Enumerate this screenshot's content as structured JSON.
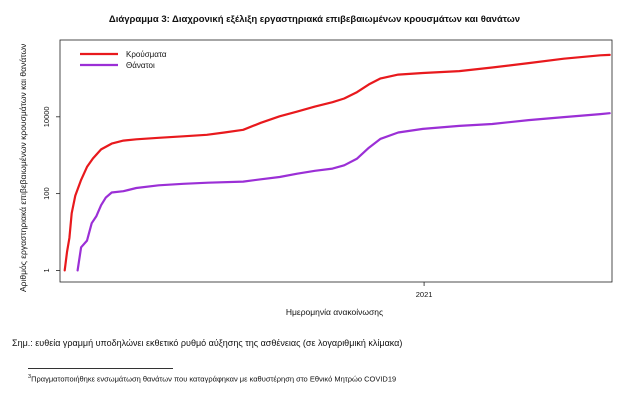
{
  "chart_data": {
    "type": "line",
    "title": "Διάγραμμα 3: Διαχρονική εξέλιξη εργαστηριακά επιβεβαιωμένων κρουσμάτων και θανάτων",
    "xlabel": "Ημερομηνία ανακοίνωσης",
    "ylabel": "Αριθμός εργαστηριακά επιβεβαιωμένων κρουσμάτων και θανάτων",
    "x_scale": "date",
    "xlim": [
      "2020-02-26",
      "2021-06-10"
    ],
    "x_ticks": [
      {
        "date": "2021-01-01",
        "label": "2021"
      }
    ],
    "y_scale": "log10",
    "ylim": [
      0.5,
      1000000
    ],
    "y_ticks": [
      {
        "value": 1,
        "label": "1"
      },
      {
        "value": 100,
        "label": "100"
      },
      {
        "value": 10000,
        "label": "10000"
      }
    ],
    "grid": false,
    "legend_position": "top-left",
    "series": [
      {
        "name": "Κρούσματα",
        "color": "#e8191d",
        "points": [
          [
            "2020-03-01",
            1
          ],
          [
            "2020-03-03",
            3
          ],
          [
            "2020-03-05",
            7
          ],
          [
            "2020-03-07",
            31
          ],
          [
            "2020-03-10",
            89
          ],
          [
            "2020-03-15",
            228
          ],
          [
            "2020-03-20",
            495
          ],
          [
            "2020-03-25",
            821
          ],
          [
            "2020-04-01",
            1415
          ],
          [
            "2020-04-10",
            2011
          ],
          [
            "2020-04-20",
            2401
          ],
          [
            "2020-05-01",
            2591
          ],
          [
            "2020-05-20",
            2850
          ],
          [
            "2020-06-10",
            3100
          ],
          [
            "2020-06-30",
            3400
          ],
          [
            "2020-07-15",
            3900
          ],
          [
            "2020-07-31",
            4600
          ],
          [
            "2020-08-15",
            7000
          ],
          [
            "2020-08-31",
            10300
          ],
          [
            "2020-09-15",
            13700
          ],
          [
            "2020-09-30",
            18500
          ],
          [
            "2020-10-15",
            24000
          ],
          [
            "2020-10-25",
            30000
          ],
          [
            "2020-11-05",
            44000
          ],
          [
            "2020-11-15",
            70000
          ],
          [
            "2020-11-25",
            100000
          ],
          [
            "2020-12-10",
            126000
          ],
          [
            "2020-12-31",
            138000
          ],
          [
            "2021-01-31",
            155000
          ],
          [
            "2021-02-28",
            192000
          ],
          [
            "2021-03-31",
            250000
          ],
          [
            "2021-04-30",
            325000
          ],
          [
            "2021-05-31",
            400000
          ],
          [
            "2021-06-08",
            410000
          ]
        ]
      },
      {
        "name": "Θάνατοι",
        "color": "#9b2fd6",
        "points": [
          [
            "2020-03-12",
            1
          ],
          [
            "2020-03-15",
            4
          ],
          [
            "2020-03-20",
            6
          ],
          [
            "2020-03-24",
            17
          ],
          [
            "2020-03-28",
            26
          ],
          [
            "2020-04-01",
            50
          ],
          [
            "2020-04-05",
            79
          ],
          [
            "2020-04-10",
            107
          ],
          [
            "2020-04-20",
            116
          ],
          [
            "2020-05-01",
            140
          ],
          [
            "2020-05-20",
            165
          ],
          [
            "2020-06-10",
            180
          ],
          [
            "2020-07-01",
            192
          ],
          [
            "2020-07-31",
            206
          ],
          [
            "2020-08-15",
            236
          ],
          [
            "2020-08-31",
            271
          ],
          [
            "2020-09-15",
            330
          ],
          [
            "2020-09-30",
            393
          ],
          [
            "2020-10-15",
            449
          ],
          [
            "2020-10-25",
            548
          ],
          [
            "2020-11-05",
            816
          ],
          [
            "2020-11-15",
            1572
          ],
          [
            "2020-11-25",
            2680
          ],
          [
            "2020-12-10",
            3900
          ],
          [
            "2020-12-31",
            4838
          ],
          [
            "2021-01-31",
            5800
          ],
          [
            "2021-02-28",
            6500
          ],
          [
            "2021-03-31",
            8200
          ],
          [
            "2021-04-30",
            9800
          ],
          [
            "2021-05-31",
            11800
          ],
          [
            "2021-06-08",
            12400
          ]
        ]
      }
    ]
  },
  "note": "Σημ.: ευθεία γραμμή υποδηλώνει εκθετικό ρυθμό αύξησης της ασθένειας (σε λογαριθμική κλίμακα)",
  "footnote": {
    "marker": "3",
    "text": "Πραγματοποιήθηκε ενσωμάτωση θανάτων που καταγράφηκαν με καθυστέρηση στο Εθνικό Μητρώο COVID19"
  }
}
